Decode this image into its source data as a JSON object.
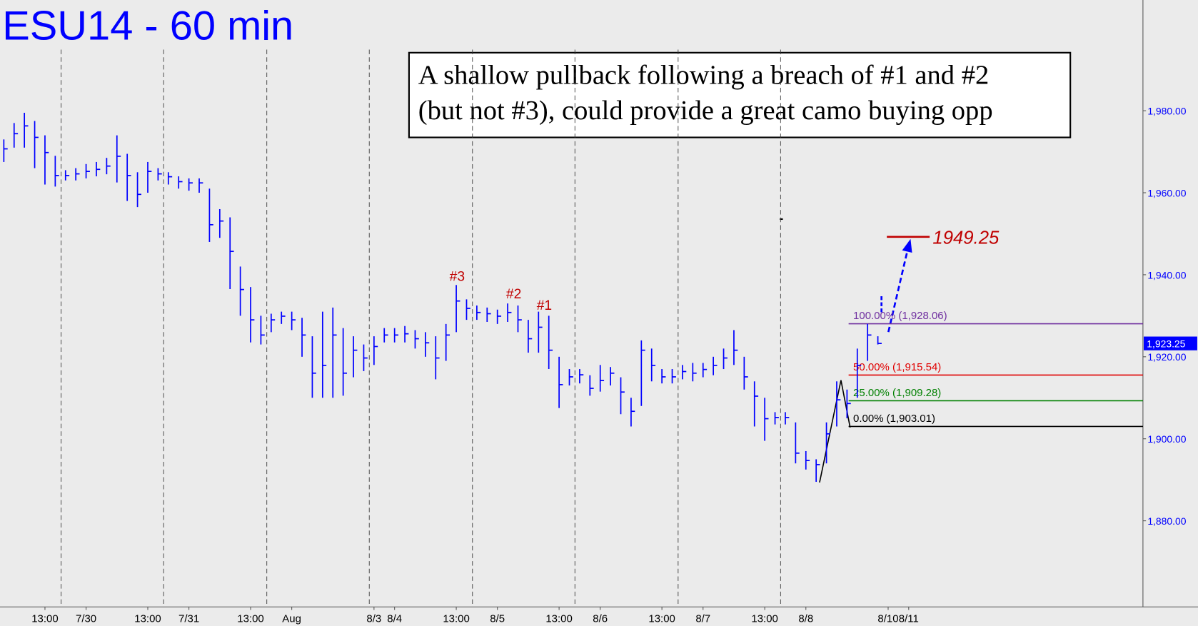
{
  "chart_data": {
    "type": "hlc",
    "title": "ESU14 - 60 min",
    "note": [
      "A shallow pullback following a breach of #1 and #2",
      "(but not #3), could provide a great camo buying opp"
    ],
    "color": "#0000ff",
    "categories": [
      null,
      null,
      null,
      null,
      "13:00",
      null,
      null,
      null,
      "7/30",
      null,
      null,
      null,
      null,
      null,
      "13:00",
      null,
      null,
      null,
      "7/31",
      null,
      null,
      null,
      null,
      null,
      "13:00",
      null,
      null,
      null,
      "Aug",
      null,
      null,
      null,
      null,
      null,
      null,
      null,
      "8/3",
      null,
      "8/4",
      null,
      null,
      null,
      null,
      null,
      "13:00",
      null,
      null,
      null,
      "8/5",
      null,
      null,
      null,
      null,
      null,
      "13:00",
      null,
      null,
      null,
      "8/6",
      null,
      null,
      null,
      null,
      null,
      "13:00",
      null,
      null,
      null,
      "8/7",
      null,
      null,
      null,
      null,
      null,
      "13:00",
      null,
      null,
      null,
      "8/8",
      null,
      null,
      null,
      null,
      null,
      null,
      null,
      "8/10",
      null,
      "8/11"
    ],
    "series": [
      {
        "name": "High",
        "values": [
          1973.0,
          1977.0,
          1979.5,
          1977.5,
          1974.0,
          1969.0,
          1965.5,
          1966.0,
          1967.0,
          1967.5,
          1968.5,
          1974.0,
          1969.5,
          1965.0,
          1967.5,
          1966.0,
          1965.0,
          1964.0,
          1963.5,
          1963.5,
          1961.0,
          1956.0,
          1954.0,
          1942.0,
          1937.0,
          1930.0,
          1930.5,
          1931.0,
          1931.0,
          1929.5,
          1925.0,
          1931.0,
          1932.0,
          1927.0,
          1925.0,
          1923.0,
          1925.0,
          1927.0,
          1927.0,
          1927.5,
          1926.5,
          1926.0,
          1925.0,
          1928.0,
          1937.5,
          1934.0,
          1932.5,
          1932.0,
          1931.5,
          1933.0,
          1932.5,
          1929.0,
          1931.0,
          1930.0,
          1920.0,
          1917.0,
          1917.0,
          1915.5,
          1918.0,
          1917.5,
          1915.0,
          1910.0,
          1924.0,
          1922.0,
          1917.0,
          1917.0,
          1918.0,
          1918.5,
          1918.5,
          1920.0,
          1922.0,
          1926.5,
          1920.0,
          1914.0,
          1910.0,
          1906.5,
          1906.5,
          1904.0,
          1897.0,
          1895.0,
          1904.0,
          1914.0,
          1912.0,
          1922.0,
          1928.0,
          1925.0,
          null,
          null,
          null
        ]
      },
      {
        "name": "Low",
        "values": [
          1967.5,
          1971.0,
          1971.0,
          1966.0,
          1962.0,
          1961.5,
          1963.0,
          1963.0,
          1963.5,
          1964.0,
          1964.5,
          1962.5,
          1958.0,
          1956.5,
          1960.0,
          1963.0,
          1962.0,
          1961.0,
          1960.5,
          1960.0,
          1948.0,
          1949.0,
          1936.5,
          1930.0,
          1923.5,
          1923.0,
          1926.0,
          1928.0,
          1926.5,
          1920.0,
          1910.0,
          1910.0,
          1910.0,
          1910.5,
          1915.0,
          1916.5,
          1918.0,
          1923.5,
          1923.5,
          1923.5,
          1922.0,
          1920.0,
          1914.5,
          1919.0,
          1926.0,
          1929.0,
          1929.0,
          1928.5,
          1928.0,
          1928.5,
          1926.0,
          1921.0,
          1921.0,
          1917.0,
          1907.5,
          1913.0,
          1913.5,
          1910.5,
          1911.5,
          1913.0,
          1906.0,
          1903.0,
          1908.0,
          1914.0,
          1913.5,
          1913.5,
          1914.5,
          1914.0,
          1915.0,
          1915.5,
          1917.0,
          1918.0,
          1912.0,
          1903.0,
          1899.5,
          1903.5,
          1903.5,
          1894.0,
          1892.5,
          1889.5,
          1894.0,
          1903.0,
          1905.0,
          1910.0,
          1919.0,
          1923.0,
          null,
          null,
          null
        ]
      },
      {
        "name": "Close",
        "values": [
          1970.7,
          1974.4,
          1976.3,
          1973.5,
          1969.8,
          1964.2,
          1964.2,
          1964.6,
          1965.2,
          1965.7,
          1966.5,
          1968.9,
          1964.2,
          1959.6,
          1965.2,
          1964.6,
          1963.9,
          1962.7,
          1962.4,
          1962.4,
          1952.2,
          1953.1,
          1945.7,
          1936.4,
          1929.0,
          1925.3,
          1929.0,
          1929.9,
          1929.0,
          1925.3,
          1916.0,
          1917.9,
          1925.3,
          1916.0,
          1921.6,
          1919.7,
          1922.5,
          1925.3,
          1925.3,
          1925.6,
          1924.4,
          1923.4,
          1919.7,
          1925.3,
          1933.6,
          1931.8,
          1930.8,
          1930.5,
          1929.9,
          1930.8,
          1929.0,
          1924.4,
          1927.2,
          1921.6,
          1913.2,
          1915.1,
          1915.6,
          1912.3,
          1914.2,
          1916.0,
          1911.4,
          1906.7,
          1921.6,
          1917.9,
          1915.1,
          1915.1,
          1916.4,
          1916.0,
          1916.9,
          1917.9,
          1919.7,
          1921.6,
          1915.1,
          1910.4,
          1904.9,
          1905.2,
          1905.2,
          1896.5,
          1894.7,
          1893.7,
          1901.2,
          1909.5,
          1908.6,
          1917.9,
          1925.3,
          1923.25,
          null,
          null,
          null
        ]
      }
    ],
    "ylim": [
      1859,
      2007
    ],
    "yticks": [
      {
        "value": 1880,
        "label": "1,880.00"
      },
      {
        "value": 1900,
        "label": "1,900.00"
      },
      {
        "value": 1920,
        "label": "1,920.00"
      },
      {
        "value": 1940,
        "label": "1,940.00"
      },
      {
        "value": 1960,
        "label": "1,960.00"
      },
      {
        "value": 1980,
        "label": "1,980.00"
      }
    ],
    "last": {
      "value": 1923.25,
      "label": "1,923.25"
    },
    "levels": [
      {
        "label": "100.00% (1,928.06)",
        "value": 1928.06,
        "color": "#7030a0"
      },
      {
        "label": "50.00% (1,915.54)",
        "value": 1915.54,
        "color": "#e00000"
      },
      {
        "label": "25.00% (1,909.28)",
        "value": 1909.28,
        "color": "#008000"
      },
      {
        "label": "0.00% (1,903.01)",
        "value": 1903.01,
        "color": "#000000"
      }
    ],
    "target": {
      "value": 1949.25,
      "label": "1949.25",
      "color": "#c00000"
    },
    "markers": [
      "#3",
      "#2",
      "#1"
    ]
  }
}
